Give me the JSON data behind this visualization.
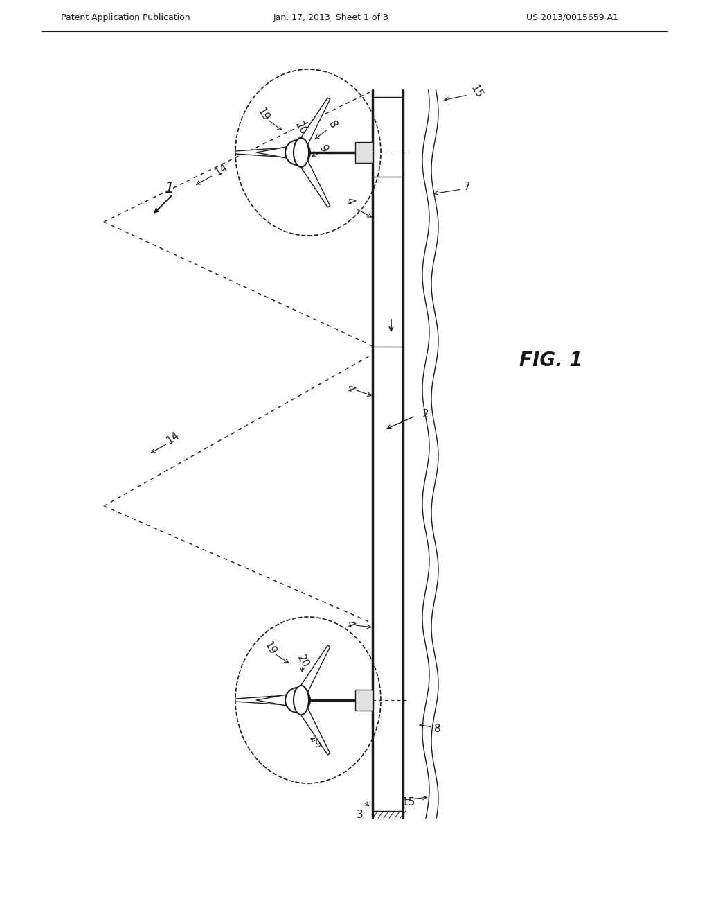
{
  "bg_color": "#ffffff",
  "line_color": "#1a1a1a",
  "header_left": "Patent Application Publication",
  "header_mid": "Jan. 17, 2013  Sheet 1 of 3",
  "header_right": "US 2013/0015659 A1",
  "fig_label": "FIG. 1",
  "label_1": "1",
  "label_2": "2",
  "label_3": "3",
  "label_4a": "4",
  "label_4b": "4",
  "label_4c": "4",
  "label_7": "7",
  "label_8a": "8",
  "label_8b": "8",
  "label_9a": "9",
  "label_9b": "9",
  "label_14a": "14",
  "label_14b": "14",
  "label_15a": "15",
  "label_15b": "15",
  "label_19a": "19",
  "label_19b": "19",
  "label_20a": "20",
  "label_20b": "20"
}
